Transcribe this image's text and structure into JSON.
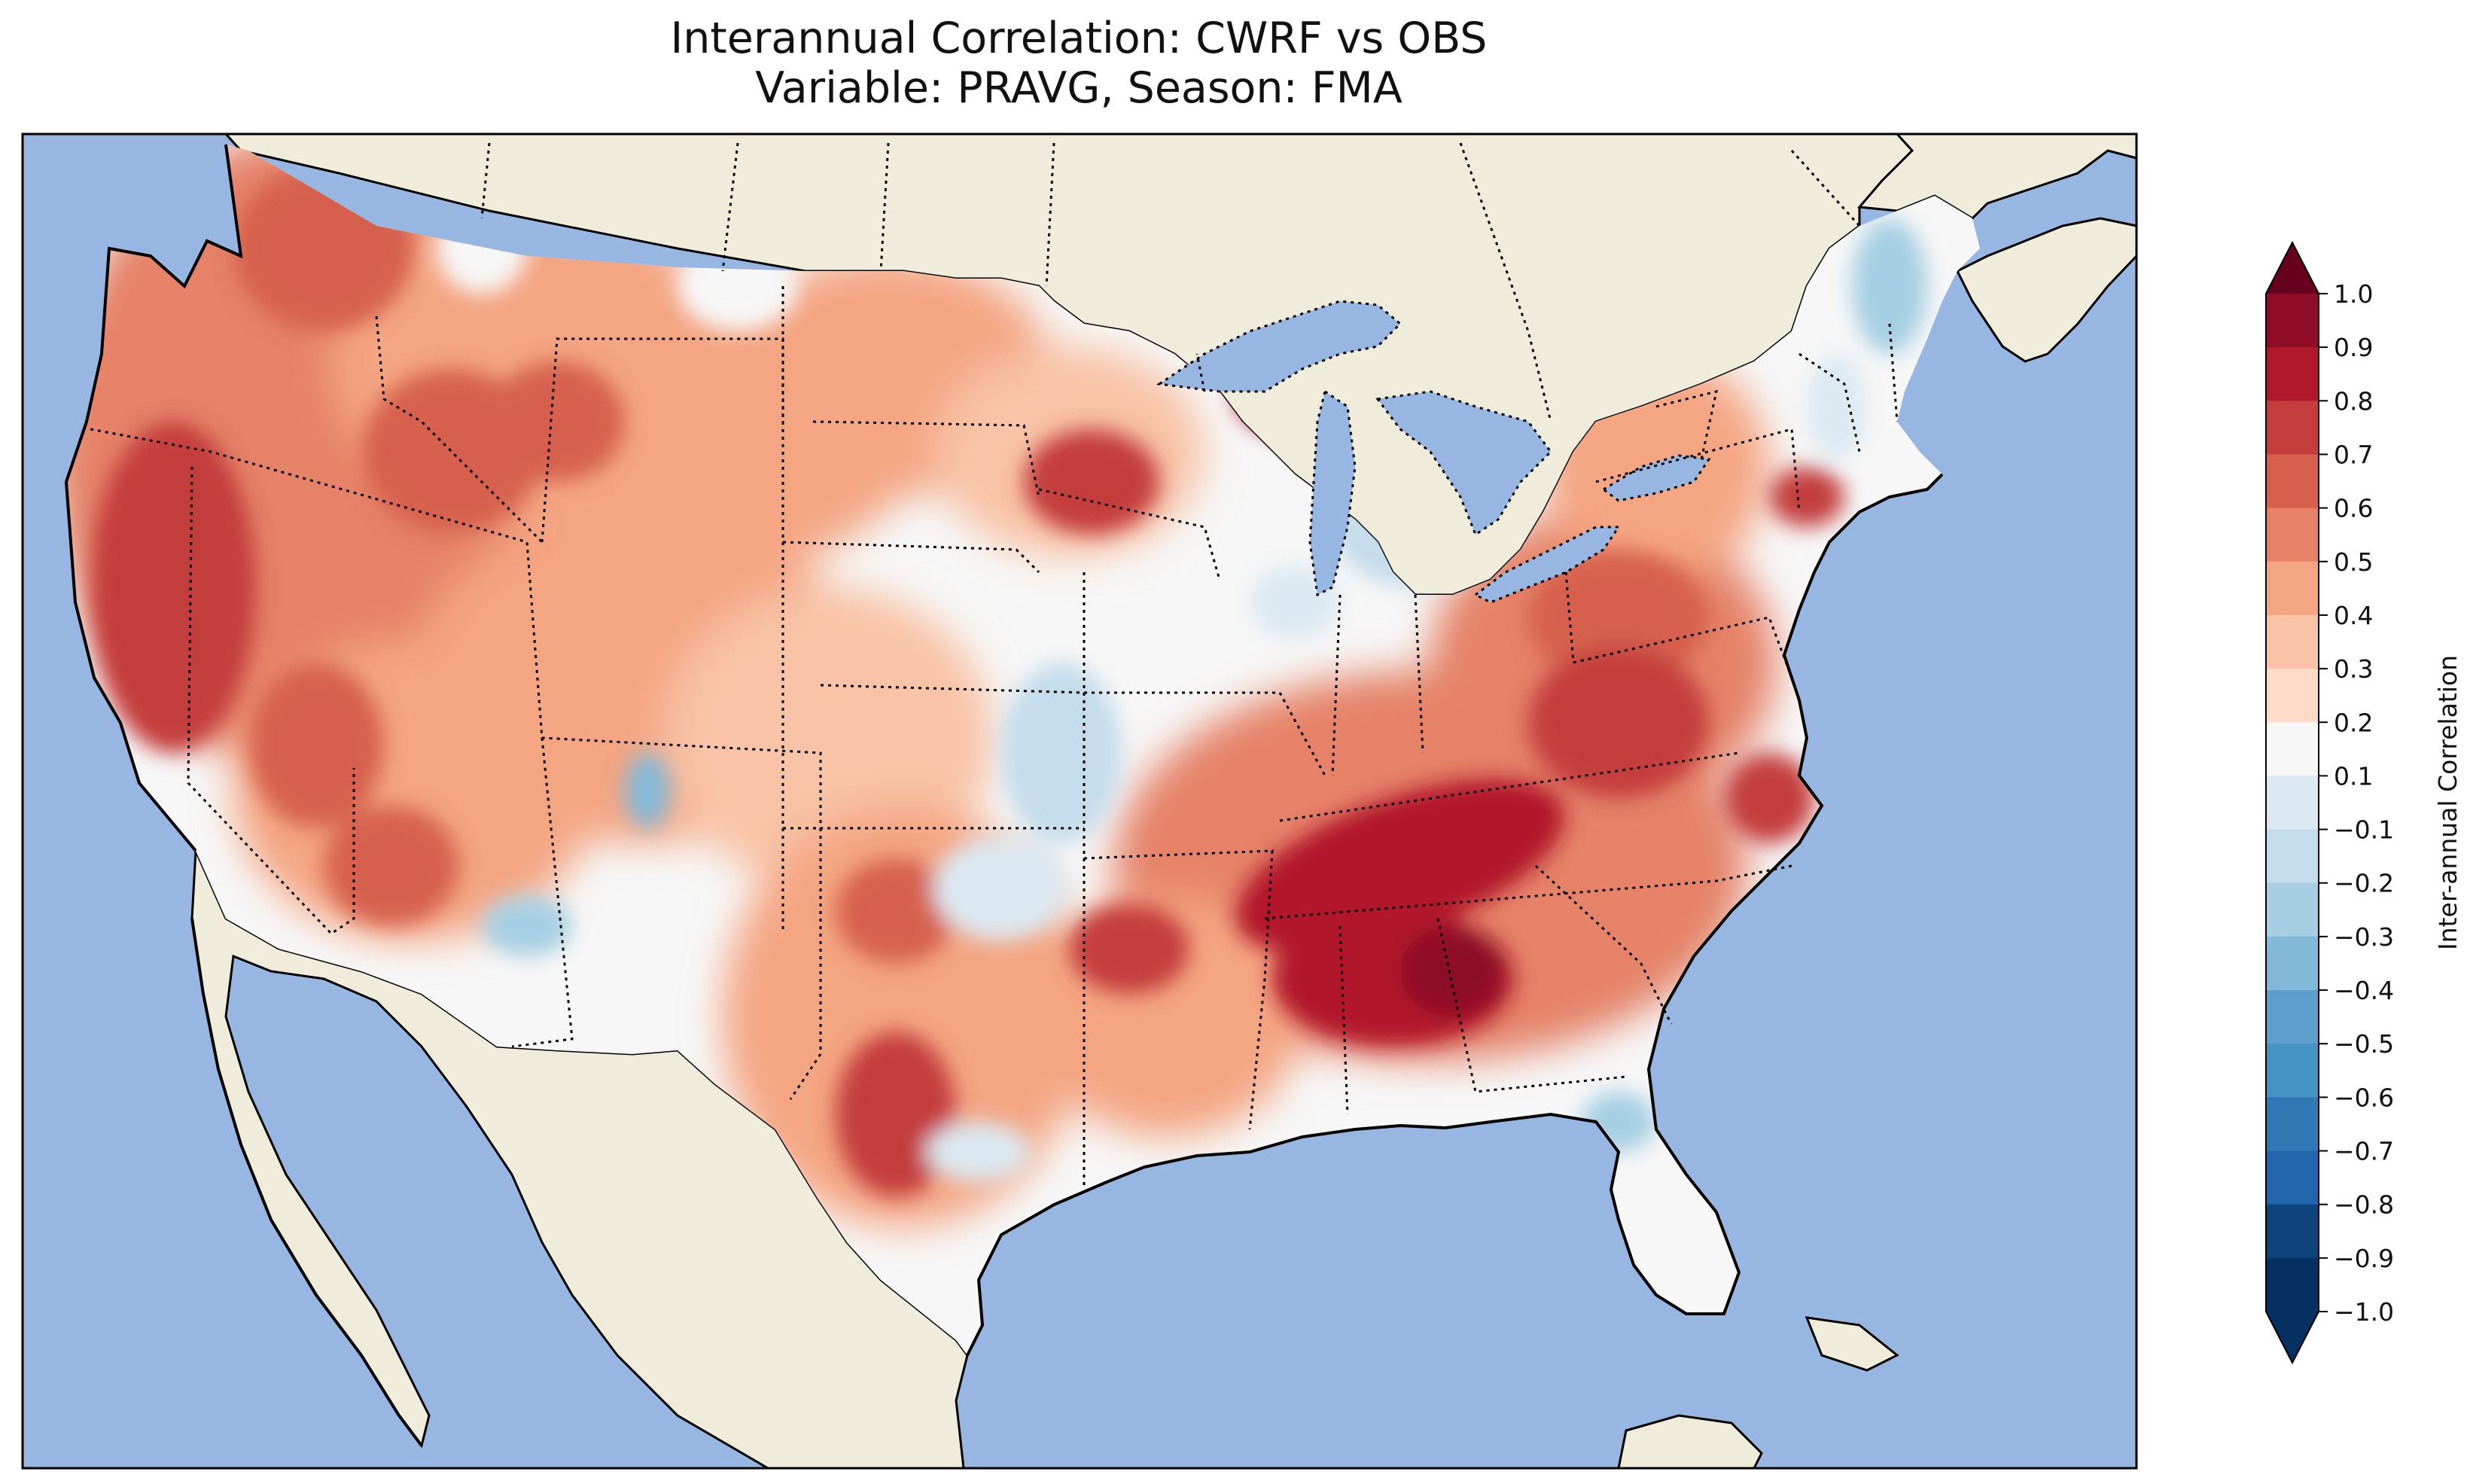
{
  "figure": {
    "title_line1": "Interannual Correlation: CWRF vs OBS",
    "title_line2": "Variable: PRAVG, Season: FMA"
  },
  "colorbar": {
    "label": "Inter-annual Correlation",
    "tick_labels": [
      "1.0",
      "0.9",
      "0.8",
      "0.7",
      "0.6",
      "0.5",
      "0.4",
      "0.3",
      "0.2",
      "0.1",
      "−0.1",
      "−0.2",
      "−0.3",
      "−0.4",
      "−0.5",
      "−0.6",
      "−0.7",
      "−0.8",
      "−0.9",
      "−1.0"
    ],
    "levels": [
      1.0,
      0.9,
      0.8,
      0.7,
      0.6,
      0.5,
      0.4,
      0.3,
      0.2,
      0.1,
      -0.1,
      -0.2,
      -0.3,
      -0.4,
      -0.5,
      -0.6,
      -0.7,
      -0.8,
      -0.9,
      -1.0
    ],
    "colors": [
      "#67001f",
      "#8e0c25",
      "#b2182b",
      "#c43c3c",
      "#d6604d",
      "#e58267",
      "#f4a582",
      "#f8c3a6",
      "#fddbc7",
      "#f7f7f7",
      "#dce9f2",
      "#c4dceb",
      "#a6cfe3",
      "#82b9d8",
      "#5d9ecc",
      "#4393c3",
      "#2f79b5",
      "#2166ac",
      "#0f437b",
      "#053061"
    ],
    "extend": "both",
    "cmap": "RdBu_r"
  },
  "map": {
    "region": "Contiguous United States",
    "ocean_color": "#97b6e1",
    "land_color": "#efecdb",
    "lake_color": "#97b6e1",
    "border_style": "dotted",
    "coastline_color": "#000000"
  },
  "chart_data": {
    "type": "heatmap",
    "variable": "PRAVG",
    "season": "FMA",
    "comparison": "CWRF vs OBS",
    "value_range": [
      -1.0,
      1.0
    ],
    "features": [
      {
        "region": "Tennessee Valley / Southeast",
        "value": 0.85
      },
      {
        "region": "California / Pacific coast",
        "value": 0.7
      },
      {
        "region": "Northern Michigan",
        "value": 0.8
      },
      {
        "region": "Ohio Valley / Virginia",
        "value": 0.7
      },
      {
        "region": "Southern Texas",
        "value": 0.7
      },
      {
        "region": "Pacific Northwest",
        "value": 0.7
      },
      {
        "region": "Lower Michigan / Great Lakes",
        "value": -0.25
      },
      {
        "region": "New England",
        "value": -0.3
      },
      {
        "region": "Kansas / Oklahoma",
        "value": -0.3
      },
      {
        "region": "Florida panhandle",
        "value": -0.45
      },
      {
        "region": "New Mexico / Arizona",
        "value": -0.35
      }
    ]
  }
}
